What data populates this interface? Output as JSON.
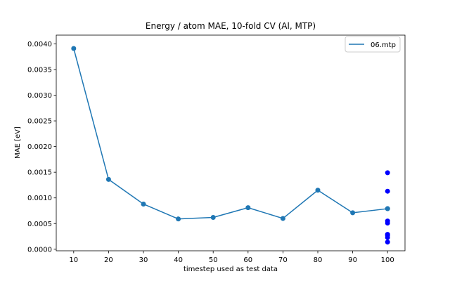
{
  "chart_data": {
    "type": "line",
    "title": "Energy / atom MAE, 10-fold CV (Al, MTP)",
    "xlabel": "timestep used as test data",
    "ylabel": "MAE [eV]",
    "xlim": [
      5,
      105
    ],
    "ylim": [
      -3e-05,
      0.00417
    ],
    "xticks": [
      10,
      20,
      30,
      40,
      50,
      60,
      70,
      80,
      90,
      100
    ],
    "yticks": [
      0.0,
      0.0005,
      0.001,
      0.0015,
      0.002,
      0.0025,
      0.003,
      0.0035,
      0.004
    ],
    "ytick_labels": [
      "0.0000",
      "0.0005",
      "0.0010",
      "0.0015",
      "0.0020",
      "0.0025",
      "0.0030",
      "0.0035",
      "0.0040"
    ],
    "legend_position": "top-right",
    "series": [
      {
        "name": "06.mtp",
        "color": "#1f77b4",
        "x": [
          10,
          20,
          30,
          40,
          50,
          60,
          70,
          80,
          90,
          100
        ],
        "y": [
          0.00391,
          0.00136,
          0.00088,
          0.00059,
          0.00062,
          0.00081,
          0.0006,
          0.00115,
          0.00071,
          0.00079
        ]
      }
    ],
    "extra_points": {
      "color": "#0000ff",
      "x": [
        100,
        100,
        100,
        100,
        100,
        100,
        100,
        100
      ],
      "y": [
        0.00149,
        0.00113,
        0.00055,
        0.00051,
        0.00029,
        0.00027,
        0.00023,
        0.00014
      ]
    }
  }
}
